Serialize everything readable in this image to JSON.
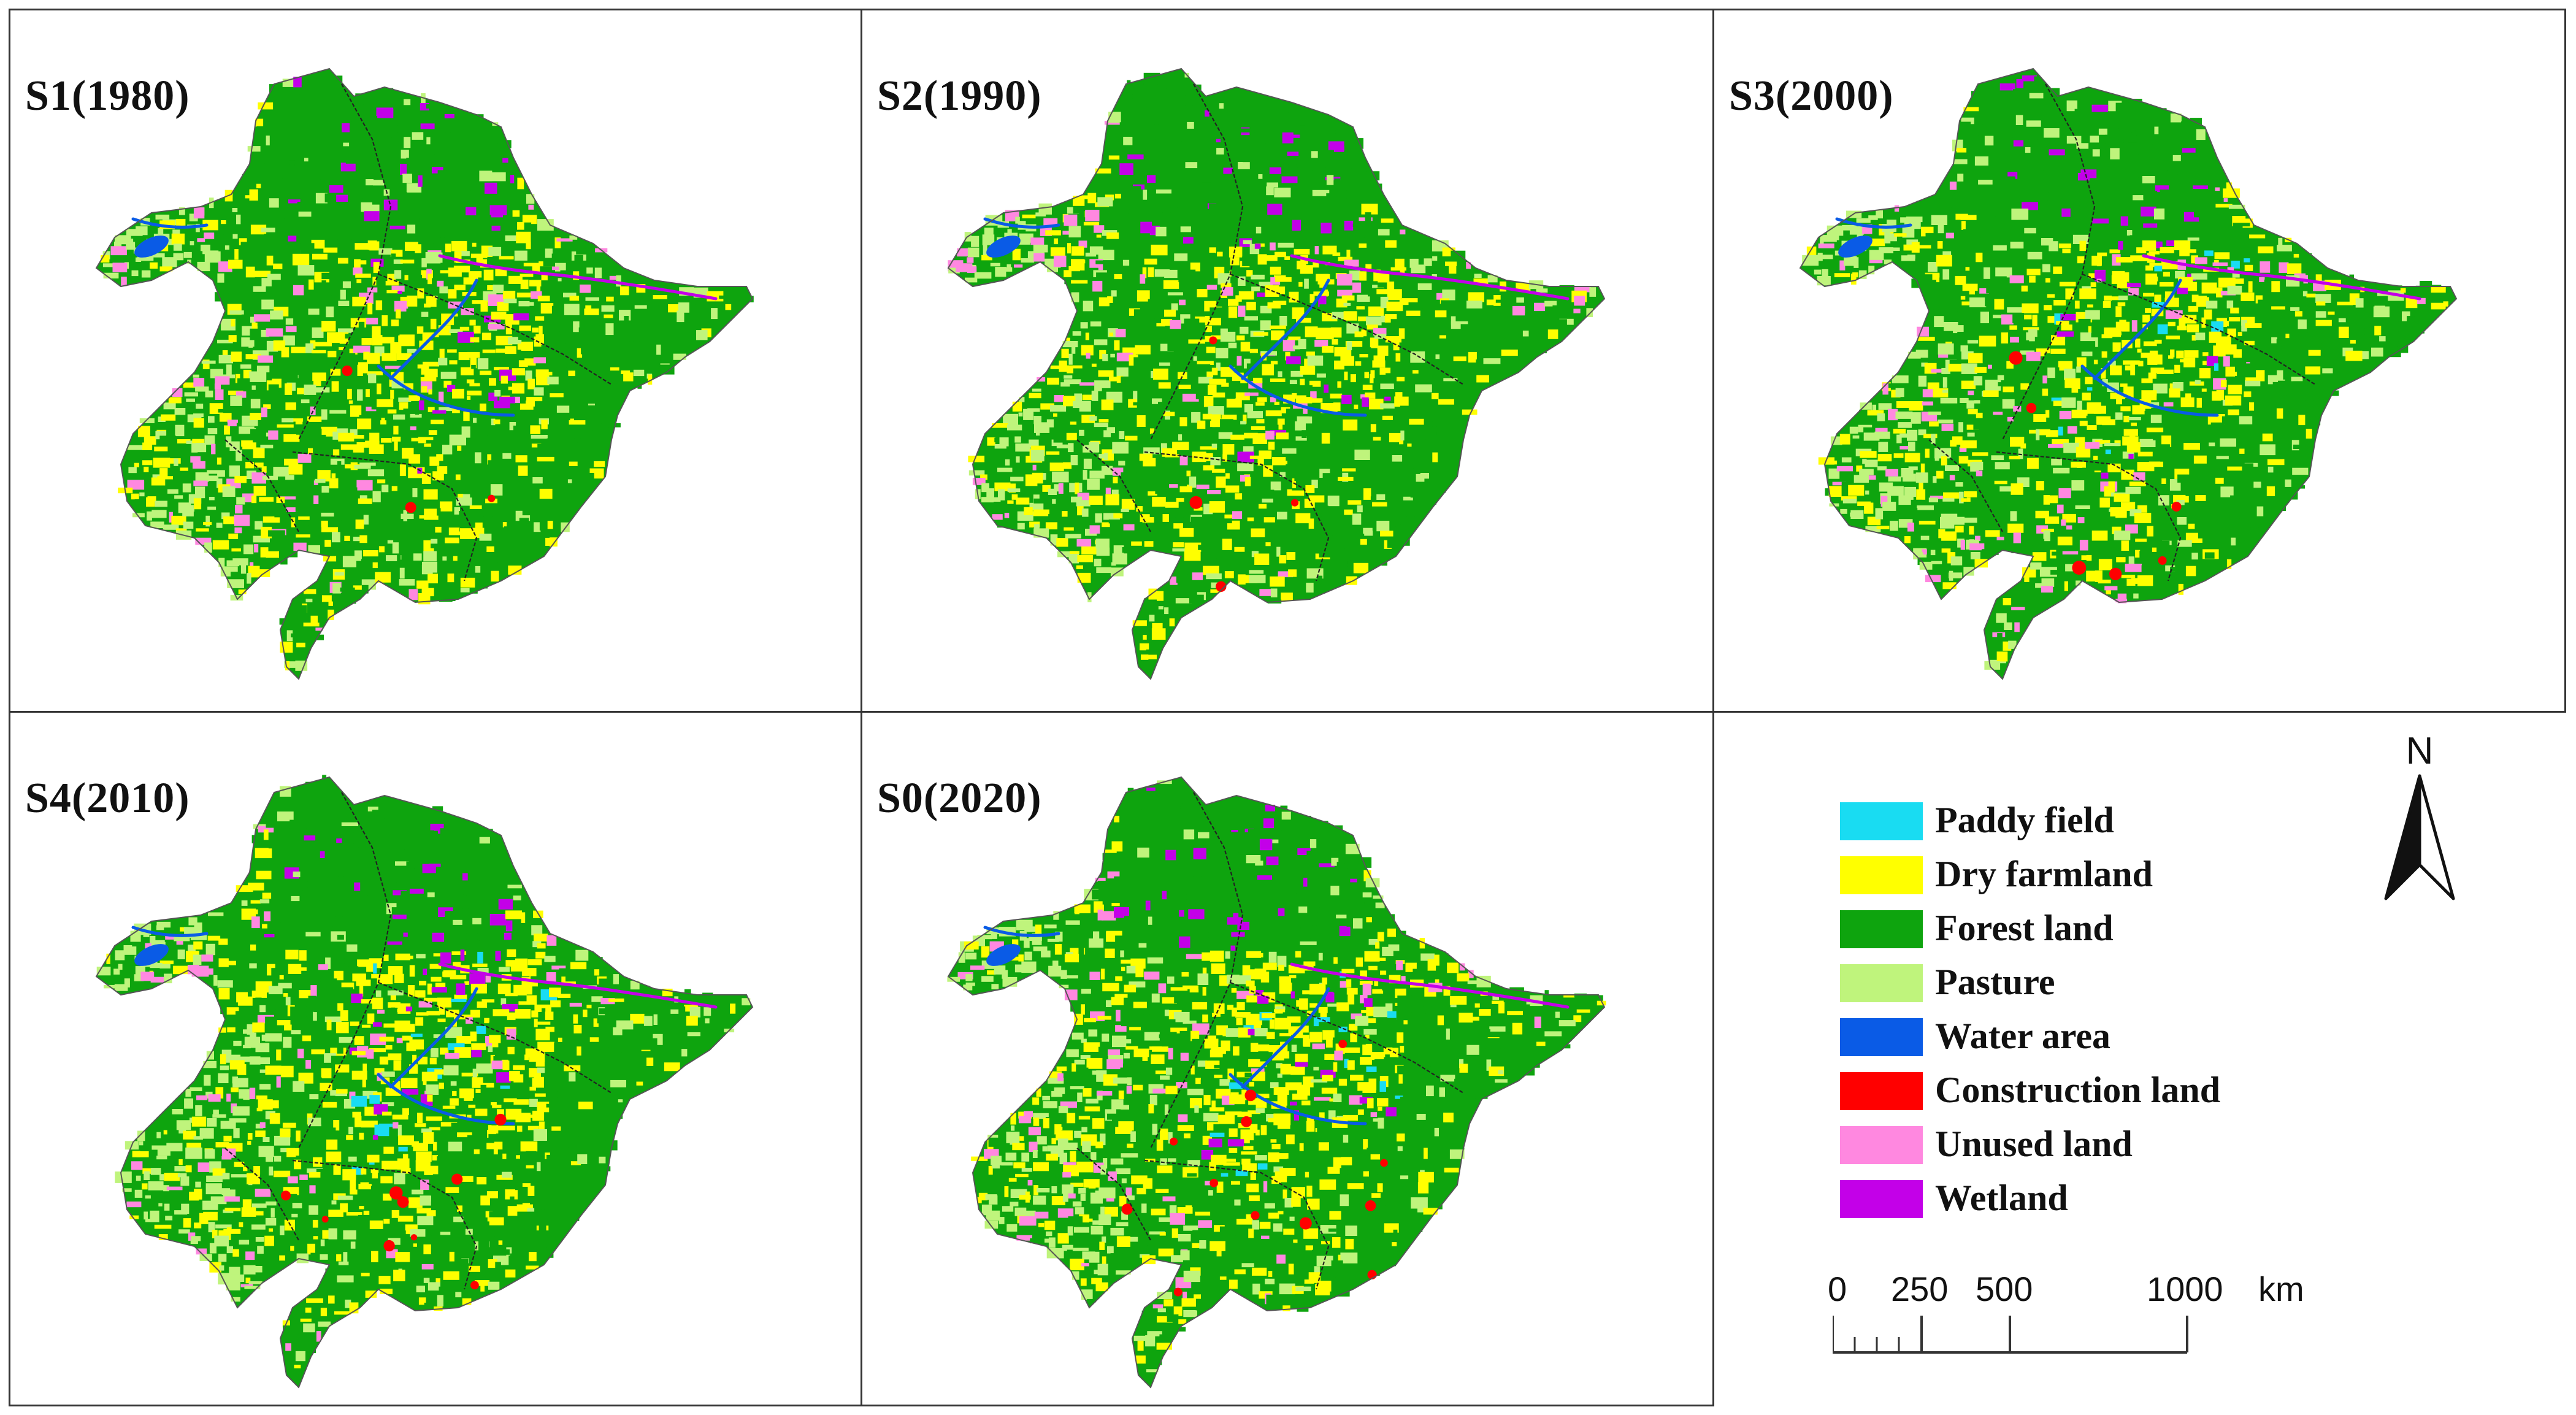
{
  "panels": [
    {
      "title": "S1(1980)"
    },
    {
      "title": "S2(1990)"
    },
    {
      "title": "S3(2000)"
    },
    {
      "title": "S4(2010)"
    },
    {
      "title": "S0(2020)"
    }
  ],
  "legend": {
    "items": [
      {
        "label": "Paddy field",
        "color": "#19dcf2"
      },
      {
        "label": "Dry farmland",
        "color": "#ffff00"
      },
      {
        "label": "Forest land",
        "color": "#0ea40e"
      },
      {
        "label": "Pasture",
        "color": "#bff47c"
      },
      {
        "label": "Water area",
        "color": "#0a5be6"
      },
      {
        "label": "Construction land",
        "color": "#ff0000"
      },
      {
        "label": "Unused land",
        "color": "#ff88e0"
      },
      {
        "label": "Wetland",
        "color": "#c300e8"
      }
    ]
  },
  "north_arrow": {
    "label": "N",
    "icon": "north-arrow-icon"
  },
  "scale_bar": {
    "ticks": [
      "0",
      "250",
      "500",
      "1000"
    ],
    "unit": "km"
  }
}
